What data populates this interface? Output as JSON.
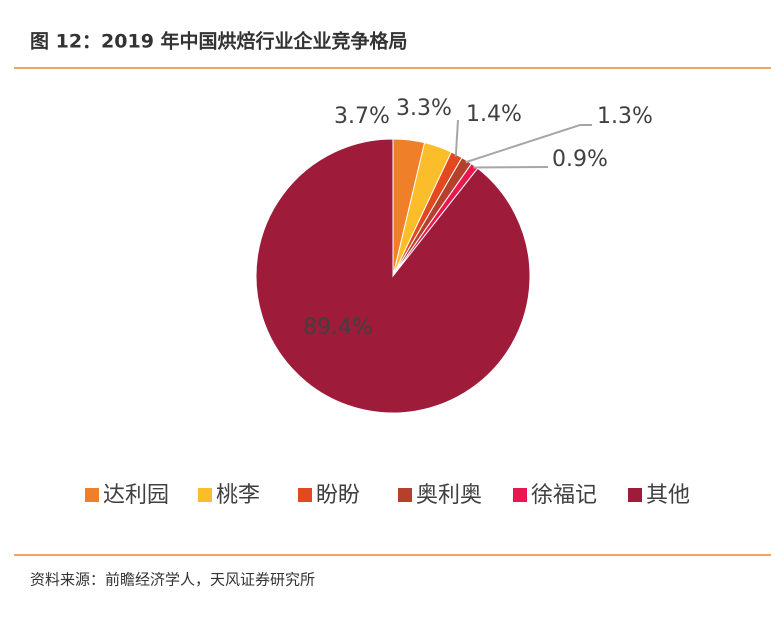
{
  "chart_data": {
    "type": "pie",
    "title": "图 12：2019 年中国烘焙行业企业竞争格局",
    "categories": [
      "达利园",
      "桃李",
      "盼盼",
      "奥利奥",
      "徐福记",
      "其他"
    ],
    "values": [
      3.7,
      3.3,
      1.4,
      1.3,
      0.9,
      89.4
    ],
    "value_labels": [
      "3.7%",
      "3.3%",
      "1.4%",
      "1.3%",
      "0.9%",
      "89.4%"
    ],
    "colors": [
      "#f07f2a",
      "#fbbd2a",
      "#e2491e",
      "#b5402c",
      "#e8174f",
      "#9e1b3a"
    ]
  },
  "source": "资料来源：前瞻经济学人，天风证券研究所"
}
